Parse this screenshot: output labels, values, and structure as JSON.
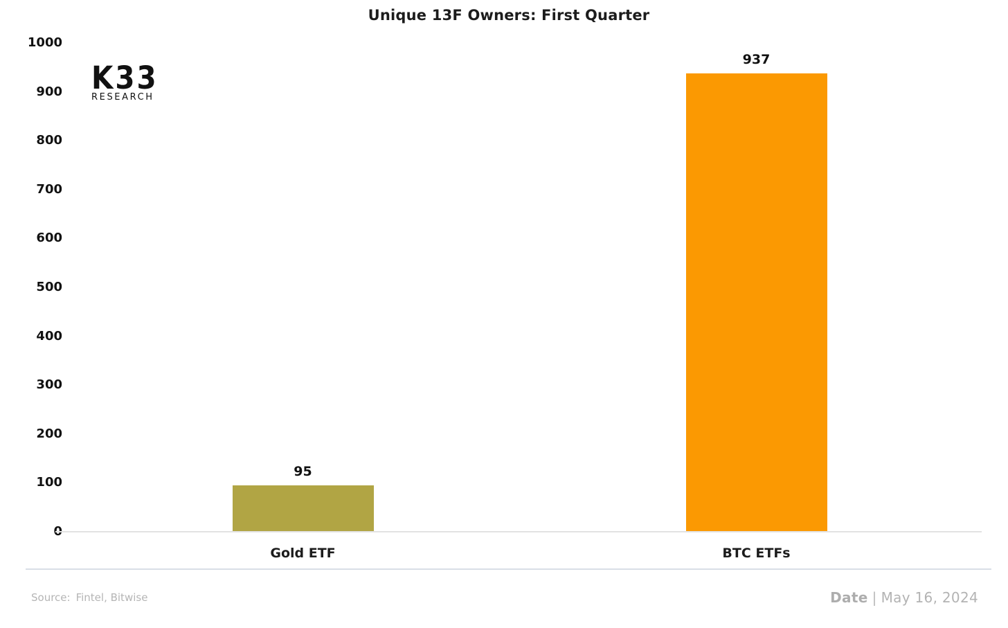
{
  "logo": {
    "line1": "K33",
    "line2": "RESEARCH"
  },
  "chart_data": {
    "type": "bar",
    "title": "Unique 13F Owners: First Quarter",
    "categories": [
      "Gold ETF",
      "BTC ETFs"
    ],
    "values": [
      95,
      937
    ],
    "value_labels": [
      "95",
      "937"
    ],
    "bar_colors": [
      "#B1A544",
      "#FB9902"
    ],
    "xlabel": "",
    "ylabel": "",
    "ylim": [
      0,
      1000
    ],
    "ytick_step": 100,
    "ytick_labels": [
      "1000",
      "900",
      "800",
      "700",
      "600",
      "500",
      "400",
      "300",
      "200",
      "100",
      "0"
    ],
    "grid": false,
    "legend_position": "none"
  },
  "footer": {
    "source_label": "Source:",
    "source_value": "Fintel, Bitwise",
    "date_label": "Date",
    "date_separator": "|",
    "date_value": "May 16, 2024"
  },
  "colors": {
    "text_dark": "#1c1c1c",
    "muted_gray": "#b5b5b5",
    "baseline_gray": "#e2e2e2",
    "separator_gray": "#d9dee6",
    "gold_bar": "#B1A544",
    "orange_bar": "#FB9902"
  }
}
